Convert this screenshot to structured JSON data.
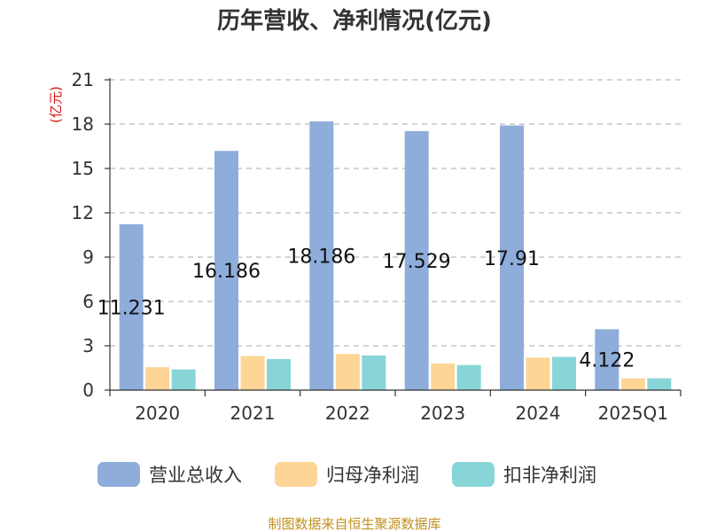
{
  "title": "历年营收、净利情况(亿元)",
  "source": "制图数据来自恒生聚源数据库",
  "colors": {
    "title": "#333333",
    "unit": "#e01010",
    "source": "#c09020",
    "axis": "#333333",
    "grid": "#bbbbbb"
  },
  "chart_data": {
    "type": "bar",
    "title": "历年营收、净利情况(亿元)",
    "ylabel": "(亿元)",
    "xlabel": "",
    "ylim": [
      0,
      21
    ],
    "yticks": [
      0,
      3,
      6,
      9,
      12,
      15,
      18,
      21
    ],
    "grid": true,
    "legend_position": "bottom",
    "categories": [
      "2020",
      "2021",
      "2022",
      "2023",
      "2024",
      "2025Q1"
    ],
    "series": [
      {
        "name": "营业总收入",
        "color": "#8eaddb",
        "values": [
          11.231,
          16.186,
          18.186,
          17.529,
          17.91,
          4.122
        ],
        "labels": [
          "11.231",
          "16.186",
          "18.186",
          "17.529",
          "17.91",
          "4.122"
        ]
      },
      {
        "name": "归母净利润",
        "color": "#fdd596",
        "values": [
          1.55,
          2.3,
          2.45,
          1.8,
          2.2,
          0.8
        ]
      },
      {
        "name": "扣非净利润",
        "color": "#88d5d8",
        "values": [
          1.4,
          2.1,
          2.35,
          1.7,
          2.25,
          0.8
        ]
      }
    ]
  }
}
